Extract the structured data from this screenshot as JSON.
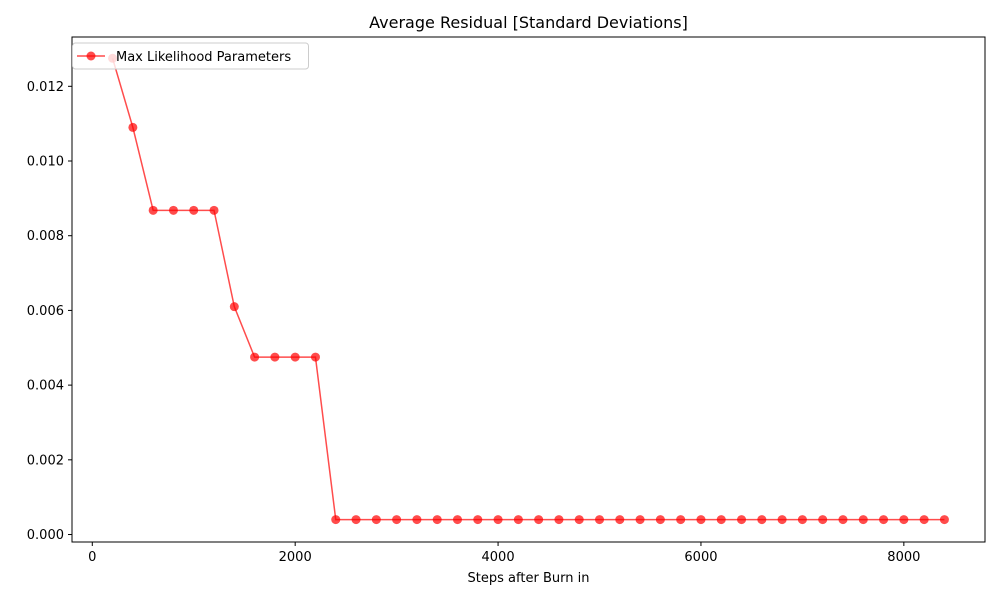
{
  "chart_data": {
    "type": "line",
    "title": "Average Residual [Standard Deviations]",
    "xlabel": "Steps after Burn in",
    "ylabel": "",
    "xlim": [
      -200,
      8800
    ],
    "ylim": [
      -0.0002,
      0.01332
    ],
    "xticks": [
      0,
      2000,
      4000,
      6000,
      8000
    ],
    "xtick_labels": [
      "0",
      "2000",
      "4000",
      "6000",
      "8000"
    ],
    "yticks": [
      0.0,
      0.002,
      0.004,
      0.006,
      0.008,
      0.01,
      0.012
    ],
    "ytick_labels": [
      "0.000",
      "0.002",
      "0.004",
      "0.006",
      "0.008",
      "0.010",
      "0.012"
    ],
    "grid": false,
    "legend_position": "top-left",
    "series": [
      {
        "name": "Max Likelihood Parameters",
        "color": "#ff0000",
        "marker": "circle",
        "alpha": 0.7,
        "x": [
          200,
          400,
          600,
          800,
          1000,
          1200,
          1400,
          1600,
          1800,
          2000,
          2200,
          2400,
          2600,
          2800,
          3000,
          3200,
          3400,
          3600,
          3800,
          4000,
          4200,
          4400,
          4600,
          4800,
          5000,
          5200,
          5400,
          5600,
          5800,
          6000,
          6200,
          6400,
          6600,
          6800,
          7000,
          7200,
          7400,
          7600,
          7800,
          8000,
          8200,
          8400
        ],
        "values": [
          0.01275,
          0.0109,
          0.00868,
          0.00868,
          0.00868,
          0.00868,
          0.0061,
          0.00475,
          0.00475,
          0.00475,
          0.00475,
          0.0004,
          0.0004,
          0.0004,
          0.0004,
          0.0004,
          0.0004,
          0.0004,
          0.0004,
          0.0004,
          0.0004,
          0.0004,
          0.0004,
          0.0004,
          0.0004,
          0.0004,
          0.0004,
          0.0004,
          0.0004,
          0.0004,
          0.0004,
          0.0004,
          0.0004,
          0.0004,
          0.0004,
          0.0004,
          0.0004,
          0.0004,
          0.0004,
          0.0004,
          0.0004,
          0.0004
        ]
      }
    ]
  }
}
